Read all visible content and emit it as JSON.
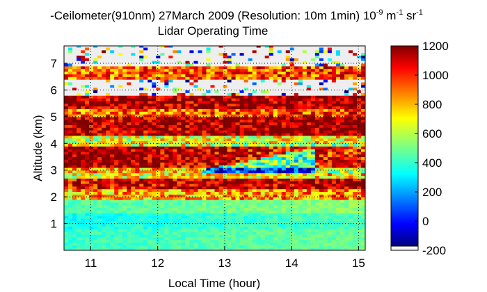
{
  "chart_data": {
    "type": "heatmap",
    "title_line1": "-Ceilometer(910nm) 27March 2009 (Resolution: 10m 1min) 10",
    "title_exp1": "-9",
    "title_unit_m": " m",
    "title_exp2": "-1",
    "title_unit_sr": " sr",
    "title_exp3": "-1",
    "title_line2": "Lidar Operating Time",
    "xlabel": "Local Time (hour)",
    "ylabel": "Altitude (km)",
    "xlim": [
      10.6,
      15.1
    ],
    "ylim": [
      0,
      7.65
    ],
    "x_ticks": [
      "11",
      "12",
      "13",
      "14",
      "15"
    ],
    "y_ticks": [
      "1",
      "2",
      "3",
      "4",
      "5",
      "6",
      "7"
    ],
    "grid": true,
    "colorbar": {
      "min": -200,
      "max": 1200,
      "ticks": [
        "1200",
        "1000",
        "800",
        "600",
        "400",
        "200",
        "0",
        "-200"
      ],
      "colormap": "jet"
    },
    "layers": [
      {
        "alt": [
          0.0,
          0.8
        ],
        "value": 430,
        "note_time_variation": "low"
      },
      {
        "alt": [
          0.8,
          1.4
        ],
        "value": 380
      },
      {
        "alt": [
          1.4,
          1.9
        ],
        "value": 470
      },
      {
        "alt": [
          1.9,
          2.3
        ],
        "value": 800
      },
      {
        "alt": [
          2.3,
          2.7
        ],
        "value": 1100
      },
      {
        "alt": [
          2.7,
          3.1
        ],
        "value": 700
      },
      {
        "alt": [
          3.1,
          3.9
        ],
        "value": 1100
      },
      {
        "alt": [
          3.9,
          4.3
        ],
        "value": 650
      },
      {
        "alt": [
          4.3,
          5.0
        ],
        "value": 1150
      },
      {
        "alt": [
          5.0,
          5.3
        ],
        "value": 900
      },
      {
        "alt": [
          5.3,
          5.8
        ],
        "value": 1150
      },
      {
        "alt": [
          5.8,
          6.4
        ],
        "value": -200
      },
      {
        "alt": [
          6.4,
          6.9
        ],
        "value": 900
      },
      {
        "alt": [
          6.9,
          7.65
        ],
        "value": -200
      }
    ]
  }
}
